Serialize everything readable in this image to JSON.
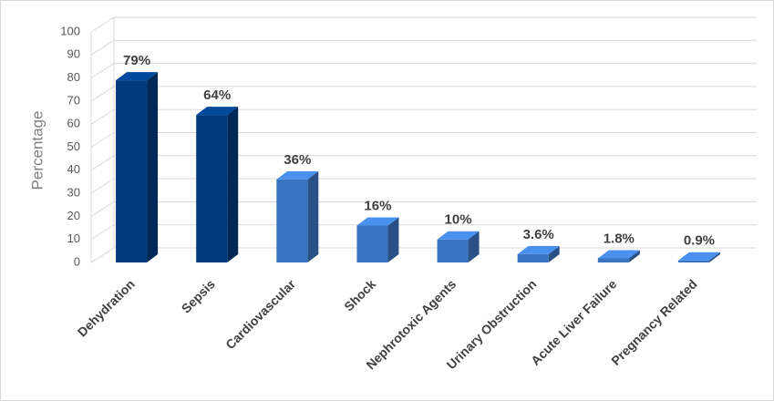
{
  "chart_data": {
    "type": "bar3d",
    "y_label": "Percentage",
    "categories": [
      "Dehydration",
      "Sepsis",
      "Cardiovascular",
      "Shock",
      "Nephrotoxic Agents",
      "Urinary Obstruction",
      "Acute Liver Failure",
      "Pregnancy Related"
    ],
    "values": [
      79,
      64,
      36,
      16,
      10,
      3.6,
      1.8,
      0.9
    ],
    "value_labels": [
      "79%",
      "64%",
      "36%",
      "16%",
      "10%",
      "3.6%",
      "1.8%",
      "0.9%"
    ],
    "colors": [
      "#003a7d",
      "#003a7d",
      "#3a73bf",
      "#3a73bf",
      "#3a73bf",
      "#3a73bf",
      "#3a73bf",
      "#3a73bf"
    ],
    "ylim": [
      0,
      100
    ],
    "yticks": [
      0,
      10,
      20,
      30,
      40,
      50,
      60,
      70,
      80,
      90,
      100
    ],
    "grid": true
  }
}
